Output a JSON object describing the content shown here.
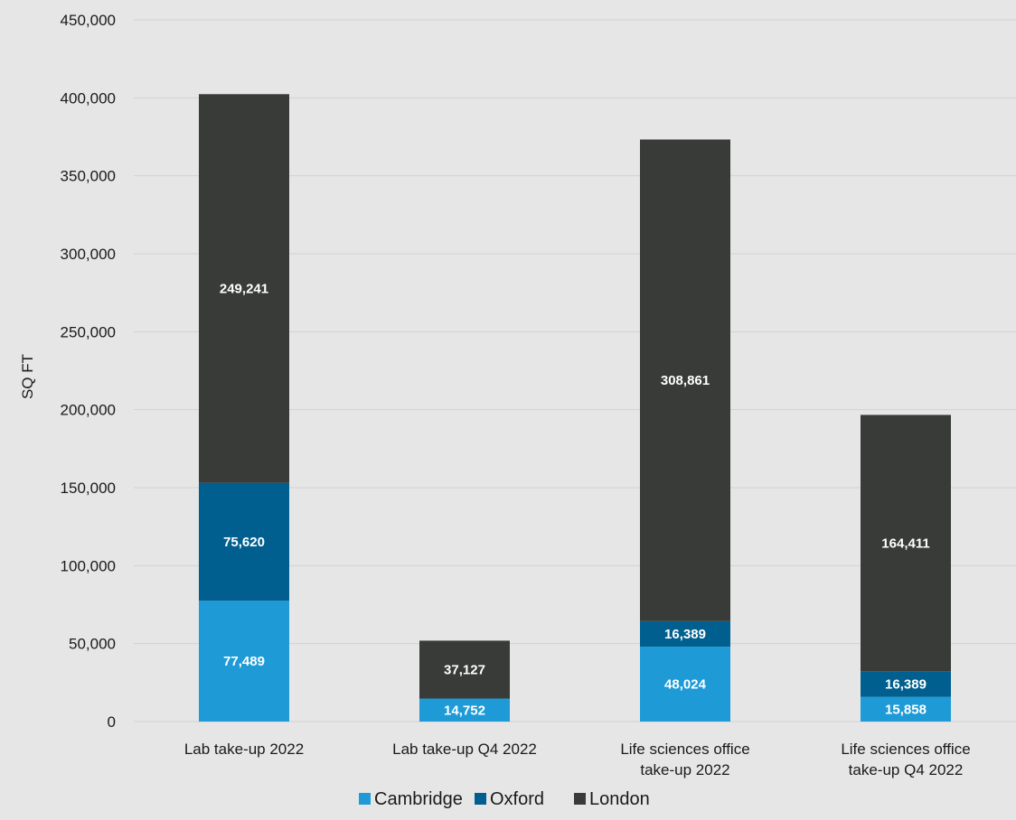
{
  "chart_data": {
    "type": "bar",
    "stacked": true,
    "categories": [
      [
        "Lab take-up 2022"
      ],
      [
        "Lab take-up Q4 2022"
      ],
      [
        "Life sciences office",
        "take-up 2022"
      ],
      [
        "Life sciences office",
        "take-up Q4 2022"
      ]
    ],
    "series": [
      {
        "name": "Cambridge",
        "color": "#1e9bd7",
        "values": [
          77489,
          14752,
          48024,
          15858
        ]
      },
      {
        "name": "Oxford",
        "color": "#005f8f",
        "values": [
          75620,
          0,
          16389,
          16389
        ]
      },
      {
        "name": "London",
        "color": "#383b38",
        "values": [
          249241,
          37127,
          308861,
          164411
        ]
      }
    ],
    "ylabel": "SQ FT",
    "xlabel": "",
    "ylim": [
      0,
      450000
    ],
    "yticks": [
      "0",
      "50,000",
      "100,000",
      "150,000",
      "200,000",
      "250,000",
      "300,000",
      "350,000",
      "400,000",
      "450,000"
    ],
    "grid": true,
    "legend_position": "bottom",
    "background": "#e6e6e6"
  }
}
